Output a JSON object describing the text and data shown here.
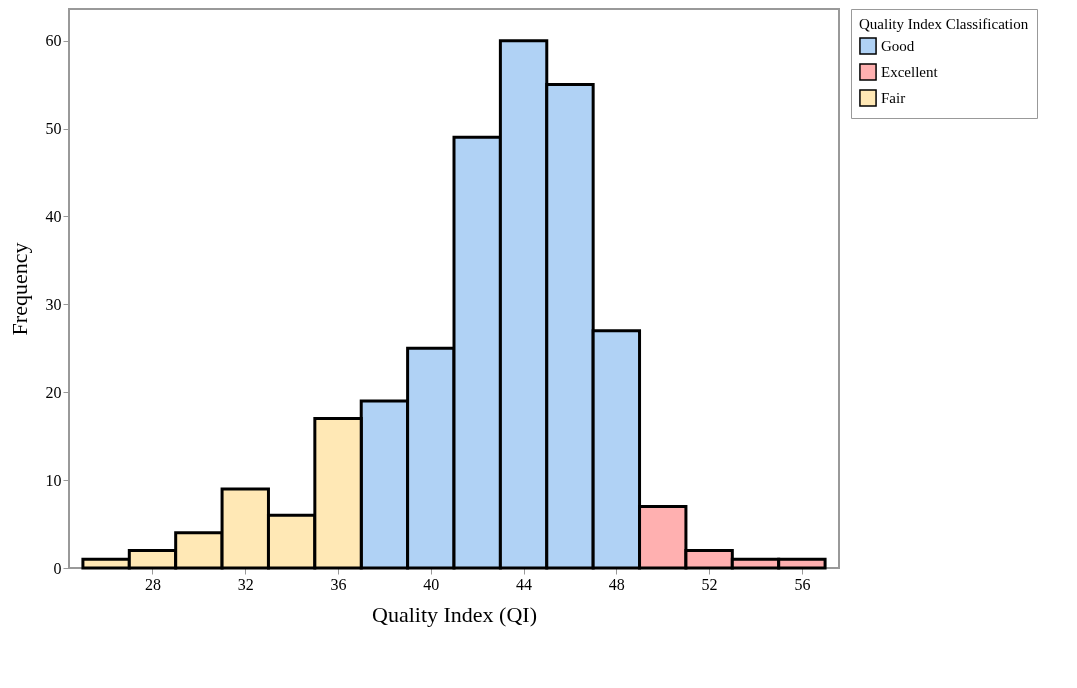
{
  "chart_data": {
    "type": "histogram",
    "xlabel": "Quality Index (QI)",
    "ylabel": "Frequency",
    "legend_title": "Quality Index Classification",
    "bins": [
      25,
      27,
      29,
      31,
      33,
      35,
      37,
      39,
      41,
      43,
      45,
      47,
      49,
      51,
      53,
      55,
      57
    ],
    "series": [
      {
        "name": "Good",
        "color": "#b0d2f5",
        "values": [
          null,
          null,
          null,
          null,
          null,
          null,
          19,
          25,
          49,
          60,
          55,
          27,
          null,
          null,
          null,
          null
        ]
      },
      {
        "name": "Excellent",
        "color": "#ffb0b0",
        "values": [
          null,
          null,
          null,
          null,
          null,
          null,
          null,
          null,
          null,
          null,
          null,
          null,
          7,
          2,
          1,
          1
        ]
      },
      {
        "name": "Fair",
        "color": "#ffe8b5",
        "values": [
          1,
          2,
          4,
          9,
          6,
          17,
          null,
          null,
          null,
          null,
          null,
          null,
          null,
          null,
          null,
          null
        ]
      }
    ],
    "xlim": [
      24.4,
      57.6
    ],
    "xticks": [
      28,
      32,
      36,
      40,
      44,
      48,
      52,
      56
    ],
    "ylim": [
      0,
      63.6
    ],
    "yticks": [
      0,
      10,
      20,
      30,
      40,
      50,
      60
    ],
    "grid": false,
    "legend": "top right"
  }
}
